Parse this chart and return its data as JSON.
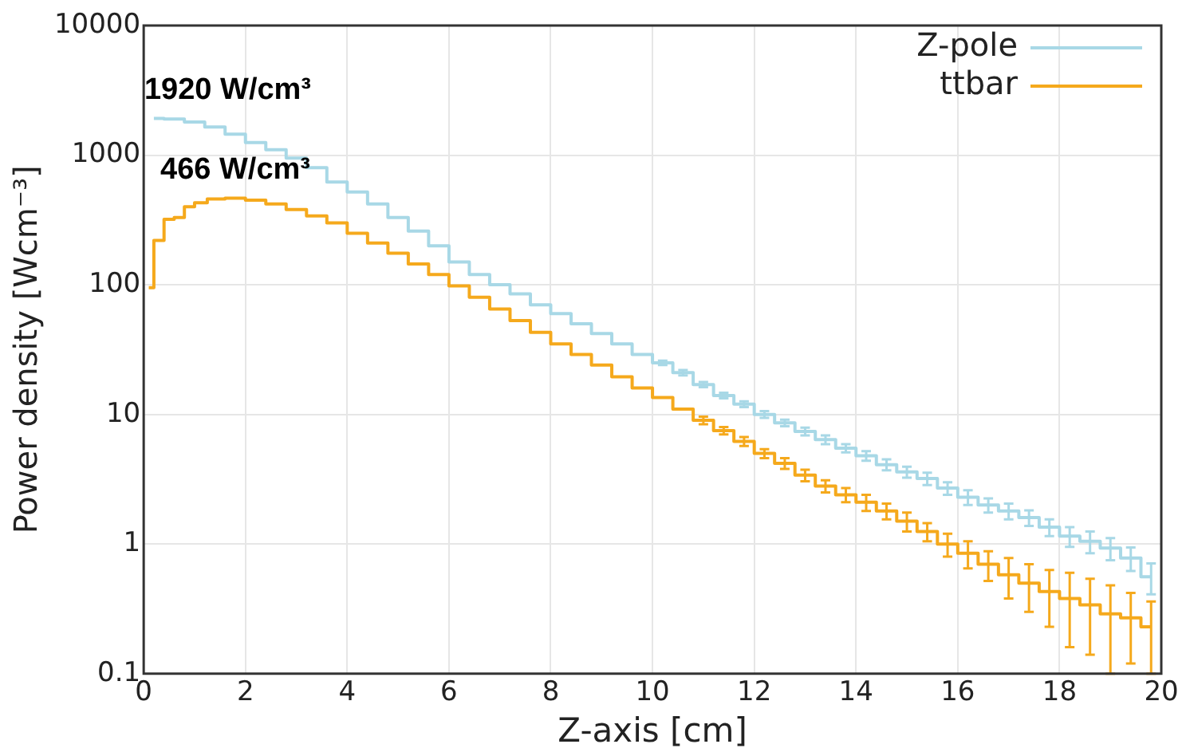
{
  "chart_data": {
    "type": "step",
    "xlabel": "Z-axis [cm]",
    "ylabel": "Power density [Wcm⁻³]",
    "log": "y",
    "grid": true,
    "legend": "top right",
    "marker": "none",
    "xlim": [
      0,
      20
    ],
    "xticks": [
      0,
      2,
      4,
      6,
      8,
      10,
      12,
      14,
      16,
      18,
      20
    ],
    "ylim": [
      0.1,
      10000
    ],
    "yticks": [
      0.1,
      1,
      10,
      100,
      1000,
      10000
    ],
    "annotations": [
      {
        "text": "1920 W/cm³",
        "x": 0.2,
        "y": 1920
      },
      {
        "text": "466 W/cm³",
        "x": 1.8,
        "y": 466
      }
    ],
    "series": [
      {
        "name": "Z-pole",
        "color": "#a8d8e6",
        "x": [
          0.2,
          0.6,
          1.0,
          1.4,
          1.8,
          2.2,
          2.6,
          3.0,
          3.4,
          3.8,
          4.2,
          4.6,
          5.0,
          5.4,
          5.8,
          6.2,
          6.6,
          7.0,
          7.4,
          7.8,
          8.2,
          8.6,
          9.0,
          9.4,
          9.8,
          10.2,
          10.6,
          11.0,
          11.4,
          11.8,
          12.2,
          12.6,
          13.0,
          13.4,
          13.8,
          14.2,
          14.6,
          15.0,
          15.4,
          15.8,
          16.2,
          16.6,
          17.0,
          17.4,
          17.8,
          18.2,
          18.6,
          19.0,
          19.4,
          19.8
        ],
        "values": [
          1920,
          1900,
          1800,
          1650,
          1450,
          1250,
          1100,
          950,
          800,
          620,
          520,
          420,
          330,
          260,
          200,
          150,
          120,
          100,
          85,
          70,
          60,
          50,
          42,
          35,
          29,
          25,
          21,
          17,
          14,
          12,
          10,
          8.6,
          7.4,
          6.4,
          5.5,
          4.8,
          4.1,
          3.6,
          3.2,
          2.7,
          2.3,
          2.0,
          1.8,
          1.6,
          1.35,
          1.15,
          1.05,
          0.93,
          0.78,
          0.56
        ],
        "errors": [
          null,
          null,
          null,
          null,
          null,
          null,
          null,
          null,
          null,
          null,
          null,
          null,
          null,
          null,
          null,
          null,
          null,
          null,
          null,
          null,
          null,
          null,
          null,
          null,
          null,
          1,
          1,
          0.8,
          0.7,
          0.6,
          0.6,
          0.5,
          0.5,
          0.5,
          0.4,
          0.4,
          0.4,
          0.35,
          0.35,
          0.3,
          0.3,
          0.25,
          0.25,
          0.22,
          0.2,
          0.2,
          0.2,
          0.18,
          0.16,
          0.15
        ]
      },
      {
        "name": "ttbar",
        "color": "#f5a91c",
        "x": [
          0.1,
          0.3,
          0.5,
          0.7,
          0.9,
          1.1,
          1.4,
          1.8,
          2.2,
          2.6,
          3.0,
          3.4,
          3.8,
          4.2,
          4.6,
          5.0,
          5.4,
          5.8,
          6.2,
          6.6,
          7.0,
          7.4,
          7.8,
          8.2,
          8.6,
          9.0,
          9.4,
          9.8,
          10.2,
          10.6,
          11.0,
          11.4,
          11.8,
          12.2,
          12.6,
          13.0,
          13.4,
          13.8,
          14.2,
          14.6,
          15.0,
          15.4,
          15.8,
          16.2,
          16.6,
          17.0,
          17.4,
          17.8,
          18.2,
          18.6,
          19.0,
          19.4,
          19.8
        ],
        "values": [
          95,
          220,
          320,
          330,
          400,
          430,
          460,
          466,
          450,
          420,
          380,
          340,
          300,
          250,
          210,
          175,
          145,
          120,
          98,
          80,
          65,
          53,
          43,
          35,
          29,
          24,
          19.5,
          16,
          13.5,
          11,
          9,
          7.5,
          6.2,
          5,
          4.2,
          3.4,
          2.8,
          2.4,
          2.1,
          1.8,
          1.5,
          1.25,
          1.0,
          0.85,
          0.7,
          0.58,
          0.5,
          0.43,
          0.38,
          0.34,
          0.29,
          0.27,
          0.23
        ],
        "errors": [
          null,
          null,
          null,
          null,
          null,
          null,
          null,
          null,
          null,
          null,
          null,
          null,
          null,
          null,
          null,
          null,
          null,
          null,
          null,
          null,
          null,
          null,
          null,
          null,
          null,
          null,
          null,
          null,
          null,
          null,
          0.6,
          0.5,
          0.5,
          0.4,
          0.4,
          0.35,
          0.3,
          0.3,
          0.3,
          0.25,
          0.25,
          0.2,
          0.2,
          0.2,
          0.18,
          0.2,
          0.2,
          0.2,
          0.22,
          0.2,
          0.19,
          0.15,
          0.13
        ]
      }
    ]
  }
}
